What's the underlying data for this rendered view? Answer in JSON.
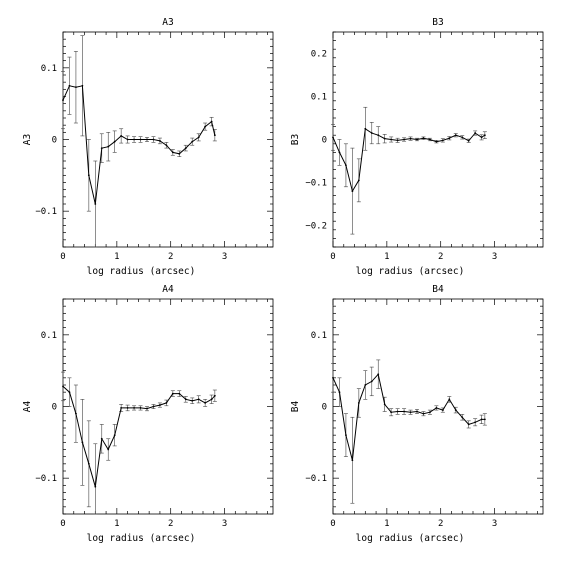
{
  "chart_data": [
    {
      "type": "line",
      "title": "A3",
      "xlabel": "log radius (arcsec)",
      "ylabel": "A3",
      "xlim": [
        0,
        3.9
      ],
      "ylim": [
        -0.15,
        0.15
      ],
      "xticks": [
        0,
        1,
        2,
        3
      ],
      "yticks": [
        -0.1,
        0,
        0.1
      ],
      "xtick_labels": [
        "0",
        "1",
        "2",
        "3"
      ],
      "ytick_labels": [
        "−0.1",
        "0",
        "0.1"
      ],
      "series": [
        {
          "x": [
            0.0,
            0.12,
            0.24,
            0.36,
            0.48,
            0.6,
            0.72,
            0.84,
            0.96,
            1.08,
            1.2,
            1.32,
            1.44,
            1.56,
            1.68,
            1.8,
            1.92,
            2.04,
            2.16,
            2.28,
            2.4,
            2.52,
            2.64,
            2.76,
            2.82
          ],
          "y": [
            0.055,
            0.075,
            0.073,
            0.075,
            -0.05,
            -0.09,
            -0.012,
            -0.01,
            -0.003,
            0.005,
            0.0,
            0.0,
            0.0,
            0.0,
            0.0,
            -0.002,
            -0.008,
            -0.018,
            -0.02,
            -0.012,
            -0.003,
            0.003,
            0.018,
            0.025,
            0.006
          ],
          "err": [
            0.04,
            0.04,
            0.05,
            0.07,
            0.05,
            0.06,
            0.02,
            0.02,
            0.015,
            0.01,
            0.005,
            0.004,
            0.004,
            0.003,
            0.004,
            0.004,
            0.004,
            0.004,
            0.004,
            0.004,
            0.005,
            0.005,
            0.005,
            0.006,
            0.008
          ]
        }
      ]
    },
    {
      "type": "line",
      "title": "B3",
      "xlabel": "log radius (arcsec)",
      "ylabel": "B3",
      "xlim": [
        0,
        3.9
      ],
      "ylim": [
        -0.25,
        0.25
      ],
      "xticks": [
        0,
        1,
        2,
        3
      ],
      "yticks": [
        -0.2,
        -0.1,
        0,
        0.1,
        0.2
      ],
      "xtick_labels": [
        "0",
        "1",
        "2",
        "3"
      ],
      "ytick_labels": [
        "−0.2",
        "−0.1",
        "0",
        "0.1",
        "0.2"
      ],
      "series": [
        {
          "x": [
            0.0,
            0.12,
            0.24,
            0.36,
            0.48,
            0.6,
            0.72,
            0.84,
            0.96,
            1.08,
            1.2,
            1.32,
            1.44,
            1.56,
            1.68,
            1.8,
            1.92,
            2.04,
            2.16,
            2.28,
            2.4,
            2.52,
            2.64,
            2.76,
            2.82
          ],
          "y": [
            0.005,
            -0.03,
            -0.06,
            -0.12,
            -0.095,
            0.025,
            0.015,
            0.01,
            0.002,
            0.0,
            -0.002,
            0.0,
            0.002,
            0.0,
            0.003,
            0.0,
            -0.005,
            -0.002,
            0.003,
            0.01,
            0.005,
            -0.003,
            0.015,
            0.005,
            0.01
          ]
        }
      ],
      "err": [
        0.03,
        0.03,
        0.05,
        0.1,
        0.05,
        0.05,
        0.025,
        0.02,
        0.01,
        0.006,
        0.005,
        0.004,
        0.004,
        0.003,
        0.003,
        0.003,
        0.003,
        0.004,
        0.004,
        0.004,
        0.004,
        0.004,
        0.005,
        0.006,
        0.008
      ]
    },
    {
      "type": "line",
      "title": "A4",
      "xlabel": "log radius (arcsec)",
      "ylabel": "A4",
      "xlim": [
        0,
        3.9
      ],
      "ylim": [
        -0.15,
        0.15
      ],
      "xticks": [
        0,
        1,
        2,
        3
      ],
      "yticks": [
        -0.1,
        0,
        0.1
      ],
      "xtick_labels": [
        "0",
        "1",
        "2",
        "3"
      ],
      "ytick_labels": [
        "−0.1",
        "0",
        "0.1"
      ],
      "series": [
        {
          "x": [
            0.0,
            0.12,
            0.24,
            0.36,
            0.48,
            0.6,
            0.72,
            0.84,
            0.96,
            1.08,
            1.2,
            1.32,
            1.44,
            1.56,
            1.68,
            1.8,
            1.92,
            2.04,
            2.16,
            2.28,
            2.4,
            2.52,
            2.64,
            2.76,
            2.82
          ],
          "y": [
            0.028,
            0.02,
            -0.01,
            -0.05,
            -0.08,
            -0.112,
            -0.045,
            -0.06,
            -0.04,
            -0.002,
            -0.002,
            -0.002,
            -0.002,
            -0.003,
            0.0,
            0.002,
            0.005,
            0.018,
            0.018,
            0.01,
            0.008,
            0.01,
            0.005,
            0.01,
            0.015
          ]
        }
      ],
      "err": [
        0.02,
        0.02,
        0.04,
        0.06,
        0.06,
        0.06,
        0.02,
        0.015,
        0.015,
        0.005,
        0.004,
        0.003,
        0.003,
        0.003,
        0.003,
        0.003,
        0.004,
        0.004,
        0.004,
        0.004,
        0.004,
        0.005,
        0.005,
        0.006,
        0.008
      ]
    },
    {
      "type": "line",
      "title": "B4",
      "xlabel": "log radius (arcsec)",
      "ylabel": "B4",
      "xlim": [
        0,
        3.9
      ],
      "ylim": [
        -0.15,
        0.15
      ],
      "xticks": [
        0,
        1,
        2,
        3
      ],
      "yticks": [
        -0.1,
        0,
        0.1
      ],
      "xtick_labels": [
        "0",
        "1",
        "2",
        "3"
      ],
      "ytick_labels": [
        "−0.1",
        "0",
        "0.1"
      ],
      "series": [
        {
          "x": [
            0.0,
            0.12,
            0.24,
            0.36,
            0.48,
            0.6,
            0.72,
            0.84,
            0.96,
            1.08,
            1.2,
            1.32,
            1.44,
            1.56,
            1.68,
            1.8,
            1.92,
            2.04,
            2.16,
            2.28,
            2.4,
            2.52,
            2.64,
            2.76,
            2.82
          ],
          "y": [
            0.04,
            0.02,
            -0.04,
            -0.075,
            0.005,
            0.03,
            0.035,
            0.045,
            0.003,
            -0.008,
            -0.007,
            -0.007,
            -0.008,
            -0.007,
            -0.01,
            -0.008,
            -0.002,
            -0.005,
            0.01,
            -0.005,
            -0.015,
            -0.025,
            -0.022,
            -0.018,
            -0.018
          ]
        }
      ],
      "err": [
        0.02,
        0.02,
        0.03,
        0.06,
        0.02,
        0.02,
        0.02,
        0.02,
        0.01,
        0.005,
        0.004,
        0.004,
        0.003,
        0.003,
        0.003,
        0.003,
        0.003,
        0.003,
        0.004,
        0.004,
        0.004,
        0.005,
        0.005,
        0.006,
        0.008
      ]
    }
  ]
}
